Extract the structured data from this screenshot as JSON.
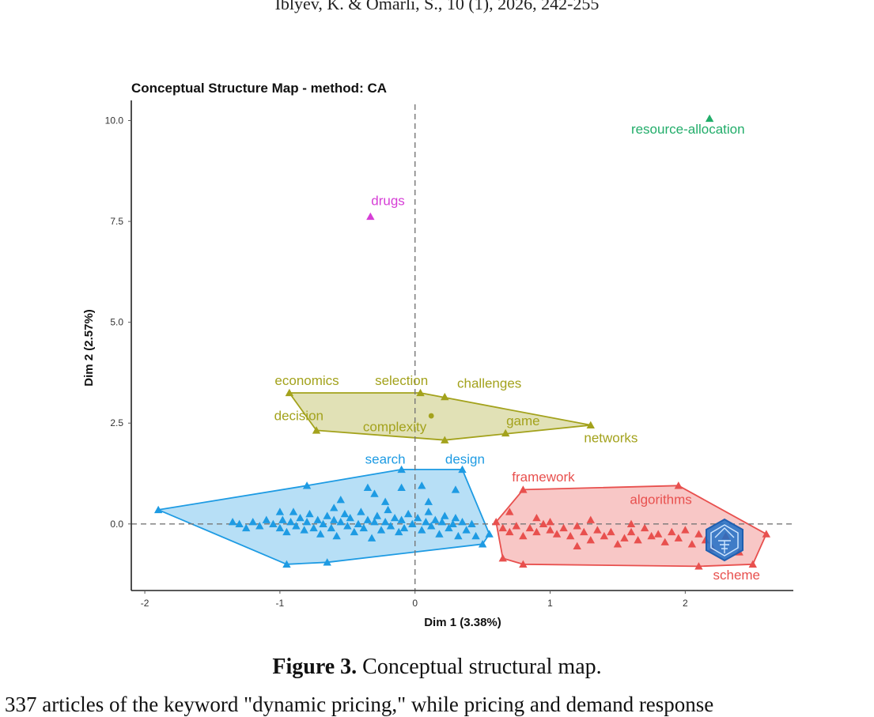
{
  "page": {
    "running_header": "Iblyev, K. & Omarli, S., 10 (1), 2026, 242-255",
    "caption_label": "Figure 3.",
    "caption_text": " Conceptual structural map.",
    "body_text": "337 articles of the keyword \"dynamic pricing,\" while pricing and demand response"
  },
  "chart_data": {
    "type": "scatter",
    "title": "Conceptual Structure Map - method: CA",
    "xlabel": "Dim 1 (3.38%)",
    "ylabel": "Dim 2 (2.57%)",
    "xlim": [
      -2.1,
      2.8
    ],
    "ylim": [
      -1.65,
      10.5
    ],
    "x_ticks": [
      -2,
      -1,
      0,
      1,
      2
    ],
    "x_tick_labels": [
      "-2",
      "-1",
      "0",
      "1",
      "2"
    ],
    "y_ticks": [
      0,
      2.5,
      5,
      7.5,
      10
    ],
    "y_tick_labels": [
      "0.0",
      "2.5",
      "5.0",
      "7.5",
      "10.0"
    ],
    "grid": false,
    "reference_lines": {
      "x": 0,
      "y": 0,
      "style": "dashed"
    },
    "clusters": [
      {
        "color": "#1e9be3",
        "hull": [
          [
            -1.9,
            0.35
          ],
          [
            -0.95,
            -1.0
          ],
          [
            -0.65,
            -0.95
          ],
          [
            0.5,
            -0.5
          ],
          [
            0.55,
            -0.25
          ],
          [
            0.35,
            1.35
          ],
          [
            -0.1,
            1.35
          ],
          [
            -0.8,
            0.95
          ]
        ],
        "centroid": null,
        "points": [
          [
            -1.9,
            0.35
          ],
          [
            -0.95,
            -1.0
          ],
          [
            -0.65,
            -0.95
          ],
          [
            0.5,
            -0.5
          ],
          [
            0.55,
            -0.25
          ],
          [
            0.35,
            1.35
          ],
          [
            -0.1,
            1.35
          ],
          [
            -0.8,
            0.95
          ],
          [
            -1.35,
            0.05
          ],
          [
            -1.3,
            0.0
          ],
          [
            -1.25,
            -0.1
          ],
          [
            -1.2,
            0.05
          ],
          [
            -1.15,
            -0.05
          ],
          [
            -1.1,
            0.1
          ],
          [
            -1.05,
            0.0
          ],
          [
            -1.0,
            -0.1
          ],
          [
            -0.98,
            0.1
          ],
          [
            -0.95,
            -0.2
          ],
          [
            -0.92,
            0.05
          ],
          [
            -0.9,
            0.3
          ],
          [
            -0.88,
            -0.05
          ],
          [
            -0.85,
            0.15
          ],
          [
            -0.82,
            -0.15
          ],
          [
            -0.8,
            0.05
          ],
          [
            -0.78,
            0.25
          ],
          [
            -0.75,
            -0.1
          ],
          [
            -0.72,
            0.1
          ],
          [
            -0.7,
            -0.25
          ],
          [
            -0.68,
            0.0
          ],
          [
            -0.65,
            0.2
          ],
          [
            -0.62,
            -0.1
          ],
          [
            -0.6,
            0.1
          ],
          [
            -0.58,
            -0.3
          ],
          [
            -0.55,
            0.05
          ],
          [
            -0.52,
            0.25
          ],
          [
            -0.5,
            -0.05
          ],
          [
            -0.48,
            0.15
          ],
          [
            -0.45,
            -0.2
          ],
          [
            -0.42,
            0.0
          ],
          [
            -0.4,
            0.3
          ],
          [
            -0.38,
            -0.1
          ],
          [
            -0.35,
            0.1
          ],
          [
            -0.32,
            -0.35
          ],
          [
            -0.3,
            0.05
          ],
          [
            -0.28,
            0.2
          ],
          [
            -0.25,
            -0.15
          ],
          [
            -0.22,
            0.05
          ],
          [
            -0.2,
            0.35
          ],
          [
            -0.18,
            -0.05
          ],
          [
            -0.15,
            0.15
          ],
          [
            -0.12,
            -0.2
          ],
          [
            -0.1,
            0.1
          ],
          [
            -0.08,
            -0.1
          ],
          [
            -0.05,
            0.25
          ],
          [
            -0.02,
            0.0
          ],
          [
            0.02,
            0.15
          ],
          [
            0.05,
            -0.15
          ],
          [
            0.08,
            0.05
          ],
          [
            0.1,
            0.3
          ],
          [
            0.12,
            -0.05
          ],
          [
            0.15,
            0.1
          ],
          [
            0.18,
            -0.25
          ],
          [
            0.2,
            0.05
          ],
          [
            0.22,
            0.2
          ],
          [
            0.25,
            -0.1
          ],
          [
            0.28,
            0.0
          ],
          [
            0.3,
            0.15
          ],
          [
            0.32,
            -0.3
          ],
          [
            0.35,
            0.05
          ],
          [
            0.38,
            -0.15
          ],
          [
            0.42,
            0.0
          ],
          [
            0.45,
            -0.3
          ],
          [
            -1.0,
            0.3
          ],
          [
            -0.55,
            0.6
          ],
          [
            -0.35,
            0.9
          ],
          [
            -0.3,
            0.75
          ],
          [
            -0.1,
            0.9
          ],
          [
            0.1,
            0.55
          ],
          [
            0.3,
            0.85
          ],
          [
            0.05,
            0.95
          ],
          [
            -0.6,
            0.4
          ],
          [
            -0.22,
            0.55
          ]
        ]
      },
      {
        "color": "#e8504e",
        "hull": [
          [
            0.6,
            0.05
          ],
          [
            0.65,
            -0.85
          ],
          [
            0.8,
            -1.0
          ],
          [
            2.1,
            -1.05
          ],
          [
            2.5,
            -1.0
          ],
          [
            2.6,
            -0.25
          ],
          [
            1.95,
            0.95
          ],
          [
            0.8,
            0.85
          ]
        ],
        "centroid": null,
        "points": [
          [
            0.6,
            0.05
          ],
          [
            0.65,
            -0.85
          ],
          [
            0.8,
            -1.0
          ],
          [
            2.1,
            -1.05
          ],
          [
            2.5,
            -1.0
          ],
          [
            2.6,
            -0.25
          ],
          [
            1.95,
            0.95
          ],
          [
            0.8,
            0.85
          ],
          [
            0.65,
            -0.1
          ],
          [
            0.7,
            -0.2
          ],
          [
            0.75,
            -0.05
          ],
          [
            0.8,
            -0.3
          ],
          [
            0.85,
            -0.1
          ],
          [
            0.9,
            -0.2
          ],
          [
            0.95,
            0.0
          ],
          [
            1.0,
            -0.15
          ],
          [
            1.05,
            -0.25
          ],
          [
            1.1,
            -0.1
          ],
          [
            1.15,
            -0.3
          ],
          [
            1.2,
            -0.05
          ],
          [
            1.25,
            -0.2
          ],
          [
            1.3,
            -0.4
          ],
          [
            1.35,
            -0.15
          ],
          [
            1.4,
            -0.3
          ],
          [
            1.45,
            -0.2
          ],
          [
            1.5,
            -0.5
          ],
          [
            1.55,
            -0.35
          ],
          [
            1.6,
            -0.2
          ],
          [
            1.65,
            -0.4
          ],
          [
            1.7,
            -0.1
          ],
          [
            1.75,
            -0.3
          ],
          [
            1.8,
            -0.25
          ],
          [
            1.85,
            -0.45
          ],
          [
            1.9,
            -0.2
          ],
          [
            1.95,
            -0.35
          ],
          [
            2.0,
            -0.15
          ],
          [
            2.05,
            -0.5
          ],
          [
            2.1,
            -0.25
          ],
          [
            2.15,
            -0.4
          ],
          [
            2.2,
            -0.6
          ],
          [
            2.3,
            -0.3
          ],
          [
            1.0,
            0.05
          ],
          [
            1.3,
            0.1
          ],
          [
            1.6,
            0.0
          ],
          [
            0.7,
            0.3
          ],
          [
            2.4,
            -0.7
          ],
          [
            1.2,
            -0.55
          ],
          [
            0.9,
            0.15
          ]
        ]
      },
      {
        "color": "#a3a21c",
        "hull": [
          [
            -0.93,
            3.25
          ],
          [
            0.04,
            3.25
          ],
          [
            1.3,
            2.45
          ],
          [
            0.22,
            2.08
          ],
          [
            -0.73,
            2.32
          ]
        ],
        "centroid": [
          0.12,
          2.68
        ],
        "points": [
          [
            -0.93,
            3.25
          ],
          [
            0.04,
            3.25
          ],
          [
            0.22,
            3.15
          ],
          [
            1.3,
            2.45
          ],
          [
            0.22,
            2.08
          ],
          [
            -0.73,
            2.32
          ],
          [
            0.67,
            2.25
          ]
        ]
      },
      {
        "color": "#d63fd6",
        "hull": null,
        "centroid": null,
        "points": [
          [
            -0.33,
            7.62
          ]
        ]
      },
      {
        "color": "#22ad6a",
        "hull": null,
        "centroid": null,
        "points": [
          [
            2.18,
            10.05
          ]
        ]
      }
    ],
    "annotations": [
      {
        "text": "resource-allocation",
        "x": 2.02,
        "y": 9.68,
        "color": "#22ad6a",
        "anchor": "middle"
      },
      {
        "text": "drugs",
        "x": -0.2,
        "y": 7.9,
        "color": "#d63fd6",
        "anchor": "middle"
      },
      {
        "text": "economics",
        "x": -0.8,
        "y": 3.45,
        "color": "#a3a21c",
        "anchor": "middle"
      },
      {
        "text": "selection",
        "x": -0.1,
        "y": 3.45,
        "color": "#a3a21c",
        "anchor": "middle"
      },
      {
        "text": "challenges",
        "x": 0.55,
        "y": 3.38,
        "color": "#a3a21c",
        "anchor": "middle"
      },
      {
        "text": "decision",
        "x": -0.86,
        "y": 2.57,
        "color": "#a3a21c",
        "anchor": "middle"
      },
      {
        "text": "complexity",
        "x": -0.15,
        "y": 2.3,
        "color": "#a3a21c",
        "anchor": "middle"
      },
      {
        "text": "game",
        "x": 0.8,
        "y": 2.45,
        "color": "#a3a21c",
        "anchor": "middle"
      },
      {
        "text": "networks",
        "x": 1.45,
        "y": 2.02,
        "color": "#a3a21c",
        "anchor": "middle"
      },
      {
        "text": "search",
        "x": -0.22,
        "y": 1.5,
        "color": "#1e9be3",
        "anchor": "middle"
      },
      {
        "text": "design",
        "x": 0.37,
        "y": 1.5,
        "color": "#1e9be3",
        "anchor": "middle"
      },
      {
        "text": "framework",
        "x": 0.95,
        "y": 1.05,
        "color": "#e8504e",
        "anchor": "middle"
      },
      {
        "text": "algorithms",
        "x": 1.82,
        "y": 0.5,
        "color": "#e8504e",
        "anchor": "middle"
      },
      {
        "text": "scheme",
        "x": 2.38,
        "y": -1.38,
        "color": "#e8504e",
        "anchor": "middle"
      }
    ]
  }
}
